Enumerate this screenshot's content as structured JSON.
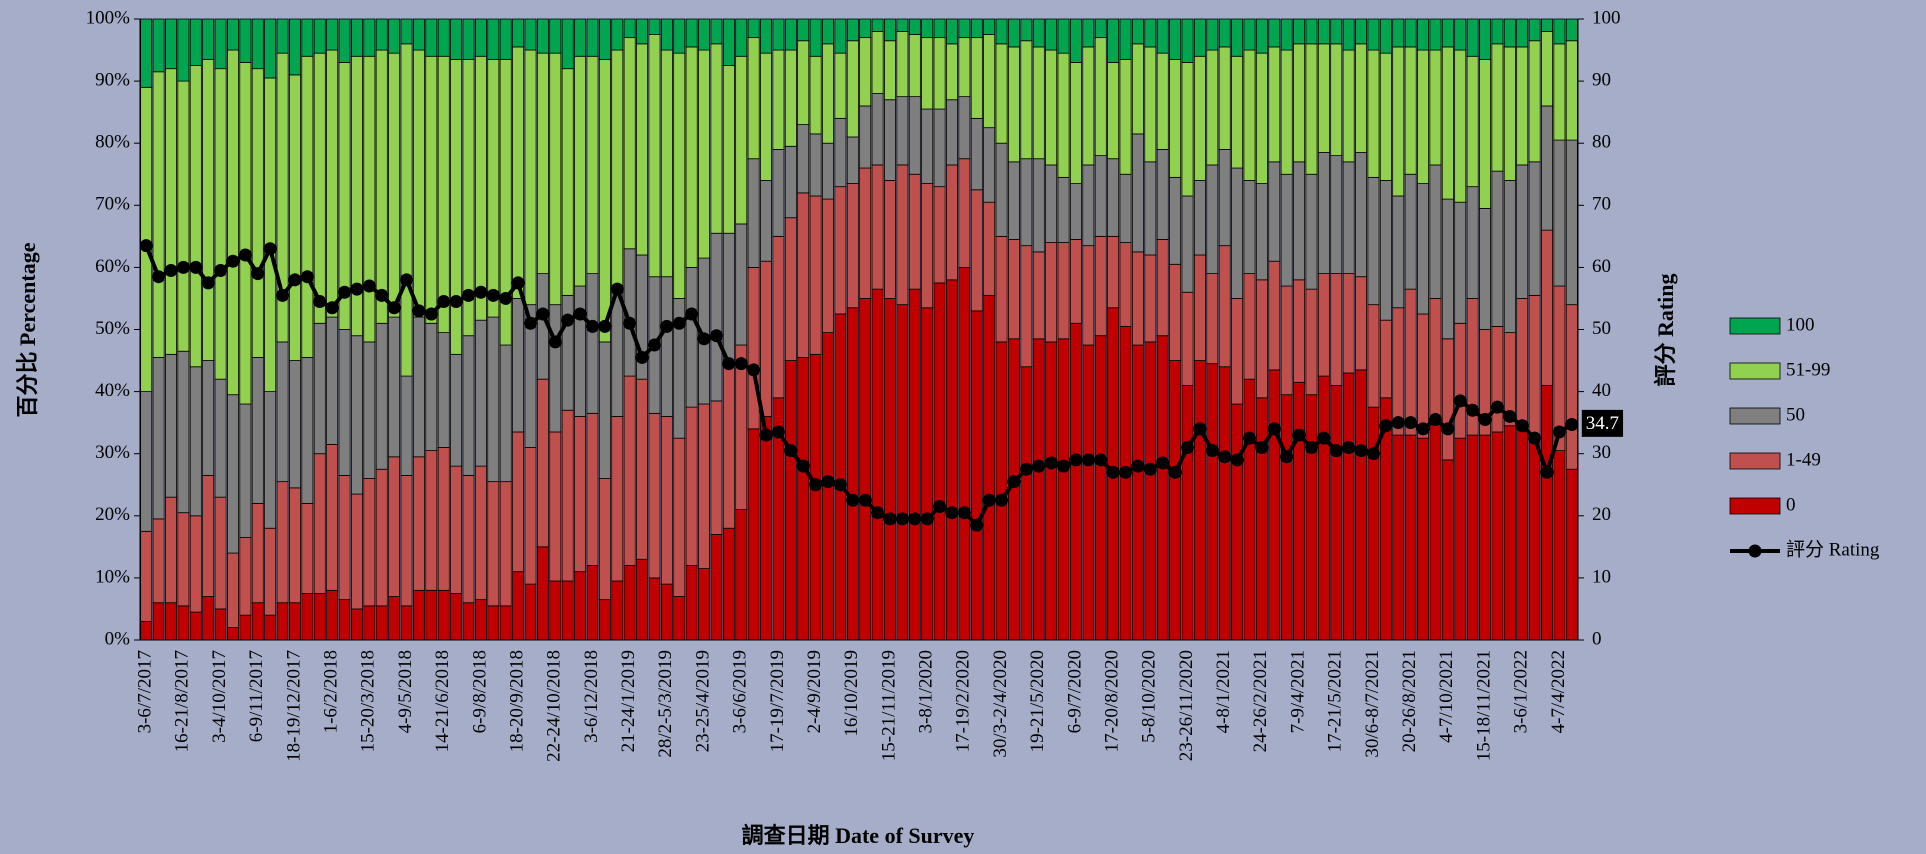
{
  "chart_data": {
    "type": "bar",
    "stacked": true,
    "x_label": "調查日期 Date of Survey",
    "y_label": "百分比 Percentage",
    "y2_label": "評分 Rating",
    "legend": "right",
    "background": "#a6adc8",
    "ylim": [
      0,
      100
    ],
    "yticks": [
      {
        "value": 0,
        "label": "0%"
      },
      {
        "value": 10,
        "label": "10%"
      },
      {
        "value": 20,
        "label": "20%"
      },
      {
        "value": 30,
        "label": "30%"
      },
      {
        "value": 40,
        "label": "40%"
      },
      {
        "value": 50,
        "label": "50%"
      },
      {
        "value": 60,
        "label": "60%"
      },
      {
        "value": 70,
        "label": "70%"
      },
      {
        "value": 80,
        "label": "80%"
      },
      {
        "value": 90,
        "label": "90%"
      },
      {
        "value": 100,
        "label": "100%"
      }
    ],
    "y2lim": [
      0,
      100
    ],
    "y2ticks": [
      0,
      10,
      20,
      30,
      40,
      50,
      60,
      70,
      80,
      90,
      100
    ],
    "categories": [
      "3-6/7/2017",
      null,
      null,
      "16-21/8/2017",
      null,
      null,
      "3-4/10/2017",
      null,
      null,
      "6-9/11/2017",
      null,
      null,
      "18-19/12/2017",
      null,
      null,
      "1-6/2/2018",
      null,
      null,
      "15-20/3/2018",
      null,
      null,
      "4-9/5/2018",
      null,
      null,
      "14-21/6/2018",
      null,
      null,
      "6-9/8/2018",
      null,
      null,
      "18-20/9/2018",
      null,
      null,
      "22-24/10/2018",
      null,
      null,
      "3-6/12/2018",
      null,
      null,
      "21-24/1/2019",
      null,
      null,
      "28/2-5/3/2019",
      null,
      null,
      "23-25/4/2019",
      null,
      null,
      "3-6/6/2019",
      null,
      null,
      "17-19/7/2019",
      null,
      null,
      "2-4/9/2019",
      null,
      null,
      "16/10/2019",
      null,
      null,
      "15-21/11/2019",
      null,
      null,
      "3-8/1/2020",
      null,
      null,
      "17-19/2/2020",
      null,
      null,
      "30/3-2/4/2020",
      null,
      null,
      "19-21/5/2020",
      null,
      null,
      "6-9/7/2020",
      null,
      null,
      "17-20/8/2020",
      null,
      null,
      "5-8/10/2020",
      null,
      null,
      "23-26/11/2020",
      null,
      null,
      "4-8/1/2021",
      null,
      null,
      "24-26/2/2021",
      null,
      null,
      "7-9/4/2021",
      null,
      null,
      "17-21/5/2021",
      null,
      null,
      "30/6-8/7/2021",
      null,
      null,
      "20-26/8/2021",
      null,
      null,
      "4-7/10/2021",
      null,
      null,
      "15-18/11/2021",
      null,
      null,
      "3-6/1/2022",
      null,
      null,
      "4-7/4/2022",
      null
    ],
    "series": [
      {
        "name": "0",
        "color": "#c00000",
        "values": [
          3,
          6,
          6,
          5.5,
          4.5,
          7,
          5,
          2,
          4,
          6,
          4,
          6,
          6,
          7.5,
          7.5,
          8,
          6.5,
          5,
          5.5,
          5.5,
          7,
          5.5,
          8,
          8,
          8,
          7.5,
          6,
          6.5,
          5.5,
          5.5,
          11,
          9,
          15,
          9.5,
          9.5,
          11,
          12,
          6.5,
          9.5,
          12,
          13,
          10,
          9,
          7,
          12,
          11.5,
          17,
          18,
          21,
          34,
          36,
          39,
          45,
          45.5,
          46,
          49.5,
          52.5,
          53.5,
          55,
          56.5,
          55,
          54,
          56.5,
          53.5,
          57.5,
          58,
          60,
          53,
          55.5,
          48,
          48.5,
          44,
          48.5,
          48,
          48.5,
          51,
          47.5,
          49,
          53.5,
          50.5,
          47.5,
          48,
          49,
          45,
          41,
          45,
          44.5,
          44,
          38,
          42,
          39,
          43.5,
          39.5,
          41.5,
          39.5,
          42.5,
          41,
          43,
          43.5,
          37.5,
          39,
          33,
          33,
          32.5,
          35,
          29,
          32.5,
          33,
          33,
          33.5,
          34.5,
          34,
          33,
          41,
          30.5,
          27.5
        ]
      },
      {
        "name": "1-49",
        "color": "#c0504d",
        "values": [
          14.5,
          13.5,
          17,
          15,
          15.5,
          19.5,
          18,
          12,
          12.5,
          16,
          14,
          19.5,
          18.5,
          14.5,
          22.5,
          23.5,
          20,
          18.5,
          20.5,
          22,
          22.5,
          21,
          21.5,
          22.5,
          23,
          20.5,
          20.5,
          21.5,
          20,
          20,
          22.5,
          22,
          27,
          24,
          27.5,
          25,
          24.5,
          19.5,
          26.5,
          30.5,
          29,
          26.5,
          27,
          25.5,
          25.5,
          26.5,
          21.5,
          26,
          26.5,
          26,
          25,
          26,
          23,
          26.5,
          25.5,
          21.5,
          20.5,
          20,
          21,
          20,
          19,
          22.5,
          18.5,
          20,
          15.5,
          18.5,
          17.5,
          19.5,
          15,
          17,
          16,
          19.5,
          14,
          16,
          15.5,
          13.5,
          16,
          16,
          11.5,
          13.5,
          15,
          14,
          15.5,
          15.5,
          15,
          17,
          14.5,
          19.5,
          17,
          17,
          19,
          17.5,
          17.5,
          16.5,
          17,
          16.5,
          18,
          16,
          15,
          16.5,
          12.5,
          20.5,
          23.5,
          20,
          20,
          19.5,
          18.5,
          22,
          17,
          17,
          15,
          21,
          22.5,
          25,
          26.5,
          26.5
        ]
      },
      {
        "name": "50",
        "color": "#7f7f7f",
        "values": [
          22.5,
          26,
          23,
          26,
          24,
          18.5,
          19,
          25.5,
          21.5,
          23.5,
          22,
          22.5,
          20.5,
          23.5,
          21,
          20.5,
          23.5,
          25.5,
          22,
          23.5,
          22.5,
          16,
          22.5,
          20.5,
          18.5,
          18,
          22.5,
          23.5,
          26.5,
          22,
          21.5,
          23,
          17,
          20.5,
          18.5,
          21,
          22.5,
          22,
          20,
          20.5,
          20,
          22,
          22.5,
          22.5,
          22.5,
          23.5,
          27,
          21.5,
          19.5,
          17.5,
          13,
          14,
          11.5,
          11,
          10,
          9,
          11,
          7.5,
          10,
          11.5,
          13,
          11,
          12.5,
          12,
          12.5,
          10.5,
          10,
          11.5,
          12,
          15,
          12.5,
          14,
          15,
          12.5,
          10.5,
          9,
          13,
          13,
          12.5,
          11,
          19,
          15,
          14.5,
          14,
          15.5,
          12,
          17.5,
          15.5,
          21,
          15,
          15.5,
          16,
          18,
          19,
          18.5,
          19.5,
          19,
          18,
          20,
          20.5,
          22.5,
          18,
          18.5,
          21,
          21.5,
          22.5,
          19.5,
          18,
          19.5,
          25,
          24.5,
          21.5,
          21.5,
          20,
          23.5,
          26.5
        ]
      },
      {
        "name": "51-99",
        "color": "#92d050",
        "values": [
          49,
          46,
          46,
          43.5,
          48.5,
          48.5,
          50,
          55.5,
          55,
          46.5,
          50.5,
          46.5,
          46,
          48.5,
          43.5,
          43,
          43,
          45,
          46,
          44,
          42.5,
          53.5,
          43,
          43,
          44.5,
          47.5,
          44.5,
          42.5,
          41.5,
          46,
          40.5,
          41,
          35.5,
          40.5,
          36.5,
          37,
          35,
          45.5,
          39,
          34,
          34,
          39,
          36.5,
          39.5,
          35.5,
          33.5,
          30.5,
          27,
          27,
          19.5,
          20.5,
          16,
          15.5,
          13.5,
          12.5,
          16,
          10.5,
          15.5,
          11,
          10,
          9.5,
          10.5,
          10,
          11.5,
          11.5,
          9,
          9.5,
          13,
          15,
          16,
          18.5,
          19,
          18,
          18.5,
          20,
          19.5,
          19,
          19,
          15.5,
          18.5,
          14.5,
          18.5,
          15.5,
          19,
          21.5,
          20,
          18.5,
          16.5,
          18,
          21,
          21,
          18.5,
          20,
          19,
          21,
          17.5,
          18,
          18,
          17.5,
          20.5,
          20.5,
          24,
          20.5,
          21.5,
          18.5,
          24.5,
          24.5,
          21,
          24,
          20.5,
          21.5,
          19,
          19.5,
          12,
          15.5,
          16
        ]
      },
      {
        "name": "100",
        "color": "#00a550",
        "values": [
          11,
          8.5,
          8,
          10,
          7.5,
          6.5,
          8,
          5,
          7,
          8,
          9.5,
          5.5,
          9,
          6,
          5.5,
          5,
          7,
          6,
          6,
          5,
          5.5,
          4,
          5,
          6,
          6,
          6.5,
          6.5,
          6,
          6.5,
          6.5,
          4.5,
          5,
          5.5,
          5.5,
          8,
          6,
          6,
          6.5,
          5,
          3,
          4,
          2.5,
          5,
          5.5,
          4.5,
          5,
          4,
          7.5,
          6,
          3,
          5.5,
          5,
          5,
          3.5,
          6,
          4,
          5.5,
          3.5,
          3,
          2,
          3.5,
          2,
          2.5,
          3,
          3,
          4,
          3,
          3,
          2.5,
          4,
          4.5,
          3.5,
          4.5,
          5,
          5.5,
          7,
          4.5,
          3,
          7,
          6.5,
          4,
          4.5,
          5.5,
          6.5,
          7,
          6,
          5,
          4.5,
          6,
          5,
          5.5,
          4.5,
          5,
          4,
          4,
          4,
          4,
          5,
          4,
          5,
          5.5,
          4.5,
          4.5,
          5,
          5,
          4.5,
          5,
          6,
          6.5,
          4,
          4.5,
          4.5,
          3.5,
          2,
          4,
          3.5
        ]
      },
      {
        "name": "評分 Rating",
        "type": "line",
        "axis": "y2",
        "color": "#000000",
        "data_labels": "last",
        "values": [
          63.5,
          58.5,
          59.5,
          60,
          60,
          57.5,
          59.5,
          61,
          62,
          59,
          63,
          55.5,
          58,
          58.5,
          54.5,
          53.5,
          56,
          56.5,
          57,
          55.5,
          53.5,
          58,
          53,
          52.5,
          54.5,
          54.5,
          55.5,
          56,
          55.5,
          55,
          57.5,
          51,
          52.5,
          48,
          51.5,
          52.5,
          50.5,
          50.5,
          56.5,
          51,
          45.5,
          47.5,
          50.5,
          51,
          52.5,
          48.5,
          49,
          44.5,
          44.5,
          43.5,
          33,
          33.5,
          30.5,
          28,
          25,
          25.5,
          25,
          22.5,
          22.5,
          20.5,
          19.5,
          19.5,
          19.5,
          19.5,
          21.5,
          20.5,
          20.5,
          18.5,
          22.5,
          22.5,
          25.5,
          27.5,
          28,
          28.5,
          28,
          29,
          29,
          29,
          27,
          27,
          28,
          27.5,
          28.5,
          27,
          31,
          34,
          30.5,
          29.5,
          29,
          32.5,
          31,
          34,
          29.5,
          33,
          31,
          32.5,
          30.5,
          31,
          30.5,
          30,
          34.5,
          35,
          35,
          34,
          35.5,
          34,
          38.5,
          37,
          35.5,
          37.5,
          36,
          34.5,
          32.5,
          27,
          33.5,
          34.7
        ]
      }
    ]
  }
}
